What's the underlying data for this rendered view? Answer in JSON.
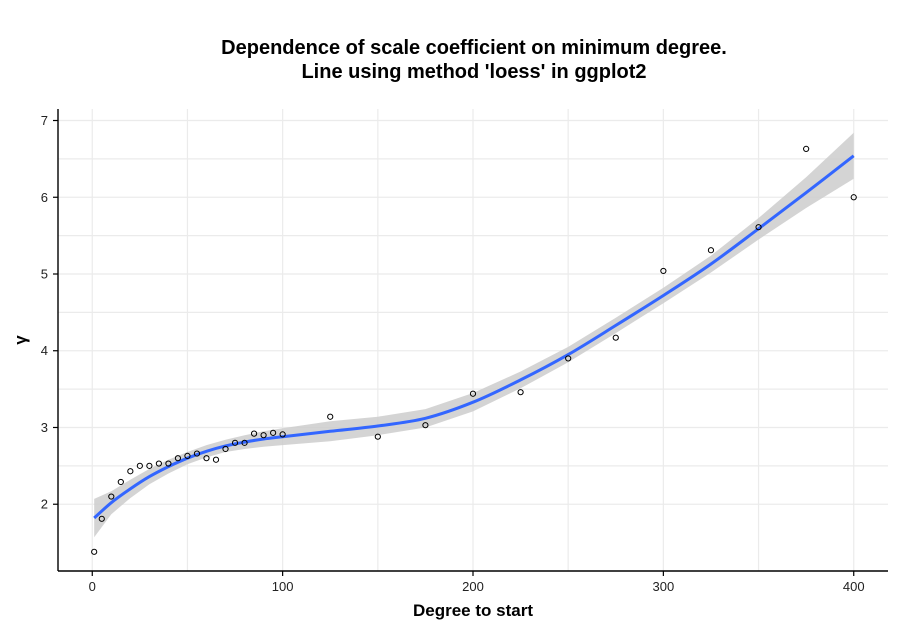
{
  "chart_data": {
    "type": "scatter",
    "title": "Dependence of scale coefficient on minimum degree.",
    "subtitle": "Line using method 'loess' in ggplot2",
    "xlabel": "Degree to start",
    "ylabel": "γ",
    "xlim": [
      -18,
      418
    ],
    "ylim": [
      1.13,
      7.15
    ],
    "x_ticks": [
      0,
      100,
      200,
      300,
      400
    ],
    "y_ticks": [
      2,
      3,
      4,
      5,
      6,
      7
    ],
    "grid": true,
    "legend": "none",
    "colors": {
      "smooth_line": "#3366ff",
      "confidence_band": "#cccccc",
      "points": "#000000"
    },
    "series": [
      {
        "kind": "points",
        "x": [
          1,
          5,
          10,
          15,
          20,
          25,
          30,
          35,
          40,
          45,
          50,
          55,
          60,
          65,
          70,
          75,
          80,
          85,
          90,
          95,
          100,
          125,
          150,
          175,
          200,
          225,
          250,
          275,
          300,
          325,
          350,
          375,
          400
        ],
        "y": [
          1.38,
          1.81,
          2.1,
          2.29,
          2.43,
          2.5,
          2.5,
          2.53,
          2.53,
          2.6,
          2.63,
          2.66,
          2.6,
          2.58,
          2.72,
          2.8,
          2.8,
          2.92,
          2.9,
          2.93,
          2.91,
          3.14,
          2.88,
          3.03,
          3.44,
          3.46,
          3.9,
          4.17,
          5.04,
          5.31,
          5.61,
          6.63,
          6.0
        ]
      },
      {
        "kind": "loess",
        "x": [
          1,
          10,
          20,
          30,
          40,
          50,
          60,
          70,
          80,
          90,
          100,
          125,
          150,
          175,
          200,
          225,
          250,
          275,
          300,
          325,
          350,
          375,
          400
        ],
        "y": [
          1.82,
          2.02,
          2.2,
          2.36,
          2.49,
          2.6,
          2.69,
          2.76,
          2.81,
          2.85,
          2.88,
          2.95,
          3.02,
          3.12,
          3.33,
          3.62,
          3.95,
          4.33,
          4.72,
          5.13,
          5.59,
          6.06,
          6.54
        ],
        "ci_half_width": [
          0.25,
          0.15,
          0.12,
          0.1,
          0.09,
          0.08,
          0.08,
          0.08,
          0.09,
          0.1,
          0.11,
          0.13,
          0.12,
          0.12,
          0.12,
          0.11,
          0.1,
          0.1,
          0.1,
          0.11,
          0.14,
          0.2,
          0.3
        ]
      }
    ]
  }
}
